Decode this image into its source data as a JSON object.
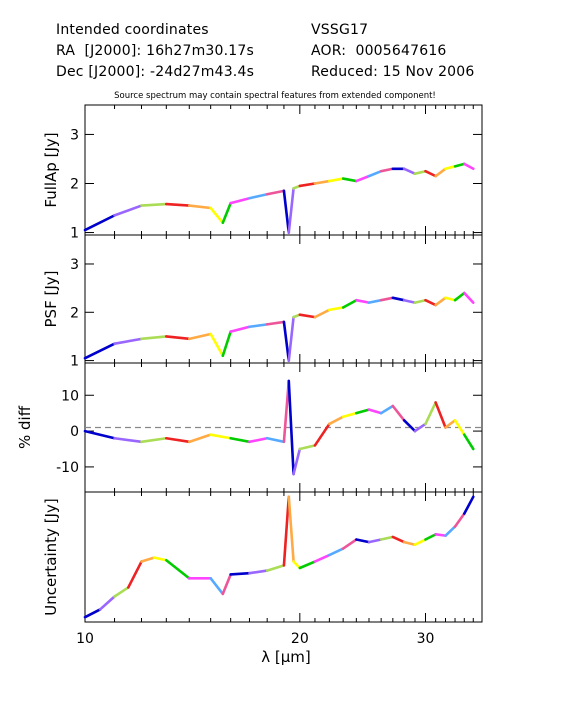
{
  "header": {
    "line1_left": "Intended coordinates",
    "line2_left": "RA  [J2000]: 16h27m30.17s",
    "line3_left": "Dec [J2000]: -24d27m43.4s",
    "line1_right": "VSSG17",
    "line2_right": "AOR:  0005647616",
    "line3_right": "Reduced: 15 Nov 2006"
  },
  "note": "Source spectrum may contain spectral features from extended component!",
  "chart_data": [
    {
      "type": "line",
      "panel": "fullap",
      "ylabel": "FullAp [Jy]",
      "ylim": [
        0.95,
        3.6
      ],
      "yticks": [
        1,
        2,
        3
      ],
      "x": [
        10,
        11,
        12,
        13,
        14,
        15,
        15.6,
        16,
        17,
        18,
        19,
        19.3,
        19.6,
        20,
        21,
        22,
        23,
        24,
        25,
        26,
        27,
        28,
        29,
        30,
        31,
        32,
        33,
        34,
        35
      ],
      "y": [
        1.05,
        1.35,
        1.55,
        1.58,
        1.55,
        1.5,
        1.2,
        1.6,
        1.7,
        1.78,
        1.85,
        1.0,
        1.9,
        1.95,
        2.0,
        2.05,
        2.1,
        2.05,
        2.15,
        2.25,
        2.3,
        2.3,
        2.2,
        2.25,
        2.15,
        2.3,
        2.35,
        2.4,
        2.3
      ]
    },
    {
      "type": "line",
      "panel": "psf",
      "ylabel": "PSF [Jy]",
      "ylim": [
        0.95,
        3.6
      ],
      "yticks": [
        1,
        2,
        3
      ],
      "x": [
        10,
        11,
        12,
        13,
        14,
        15,
        15.6,
        16,
        17,
        18,
        19,
        19.3,
        19.6,
        20,
        21,
        22,
        23,
        24,
        25,
        26,
        27,
        28,
        29,
        30,
        31,
        32,
        33,
        34,
        35
      ],
      "y": [
        1.05,
        1.35,
        1.45,
        1.5,
        1.45,
        1.55,
        1.1,
        1.6,
        1.7,
        1.75,
        1.8,
        1.0,
        1.9,
        1.95,
        1.9,
        2.05,
        2.1,
        2.25,
        2.2,
        2.25,
        2.3,
        2.25,
        2.2,
        2.25,
        2.15,
        2.3,
        2.25,
        2.4,
        2.2
      ]
    },
    {
      "type": "line",
      "panel": "pct_diff",
      "ylabel": "% diff",
      "ylim": [
        -17,
        19
      ],
      "yticks": [
        -10,
        0,
        10
      ],
      "reference_line": 1,
      "x": [
        10,
        11,
        12,
        13,
        14,
        15,
        16,
        17,
        18,
        19,
        19.3,
        19.6,
        20,
        21,
        22,
        23,
        24,
        25,
        26,
        27,
        28,
        29,
        30,
        31,
        32,
        33,
        34,
        35
      ],
      "y": [
        0,
        -2,
        -3,
        -2,
        -3,
        -1,
        -2,
        -3,
        -2,
        -3,
        14,
        -12,
        -5,
        -4,
        2,
        4,
        5,
        6,
        5,
        7,
        3,
        0,
        2,
        8,
        1,
        3,
        -1,
        -5
      ]
    },
    {
      "type": "line",
      "panel": "uncertainty",
      "ylabel": "Uncertainty [Jy]",
      "x": [
        10,
        10.5,
        11,
        11.5,
        12,
        12.5,
        13,
        14,
        15,
        15.6,
        16,
        17,
        18,
        19,
        19.3,
        19.6,
        20,
        21,
        22,
        23,
        24,
        25,
        26,
        27,
        28,
        29,
        30,
        31,
        32,
        33,
        34,
        35
      ],
      "y": [
        0.02,
        0.08,
        0.18,
        0.25,
        0.45,
        0.48,
        0.46,
        0.32,
        0.32,
        0.2,
        0.35,
        0.36,
        0.38,
        0.42,
        0.95,
        0.45,
        0.4,
        0.45,
        0.5,
        0.55,
        0.62,
        0.6,
        0.62,
        0.64,
        0.6,
        0.58,
        0.62,
        0.66,
        0.65,
        0.72,
        0.82,
        0.95
      ]
    }
  ],
  "xaxis": {
    "label": "λ [μm]",
    "xlim": [
      10,
      36
    ],
    "scale": "log",
    "ticks": [
      10,
      20,
      30
    ]
  },
  "segment_colors": [
    "#0000cc",
    "#9966ff",
    "#aadd55",
    "#ee2222",
    "#ffaa44",
    "#ffff00",
    "#00cc00",
    "#ff44ff",
    "#55aaff",
    "#ee5599"
  ]
}
